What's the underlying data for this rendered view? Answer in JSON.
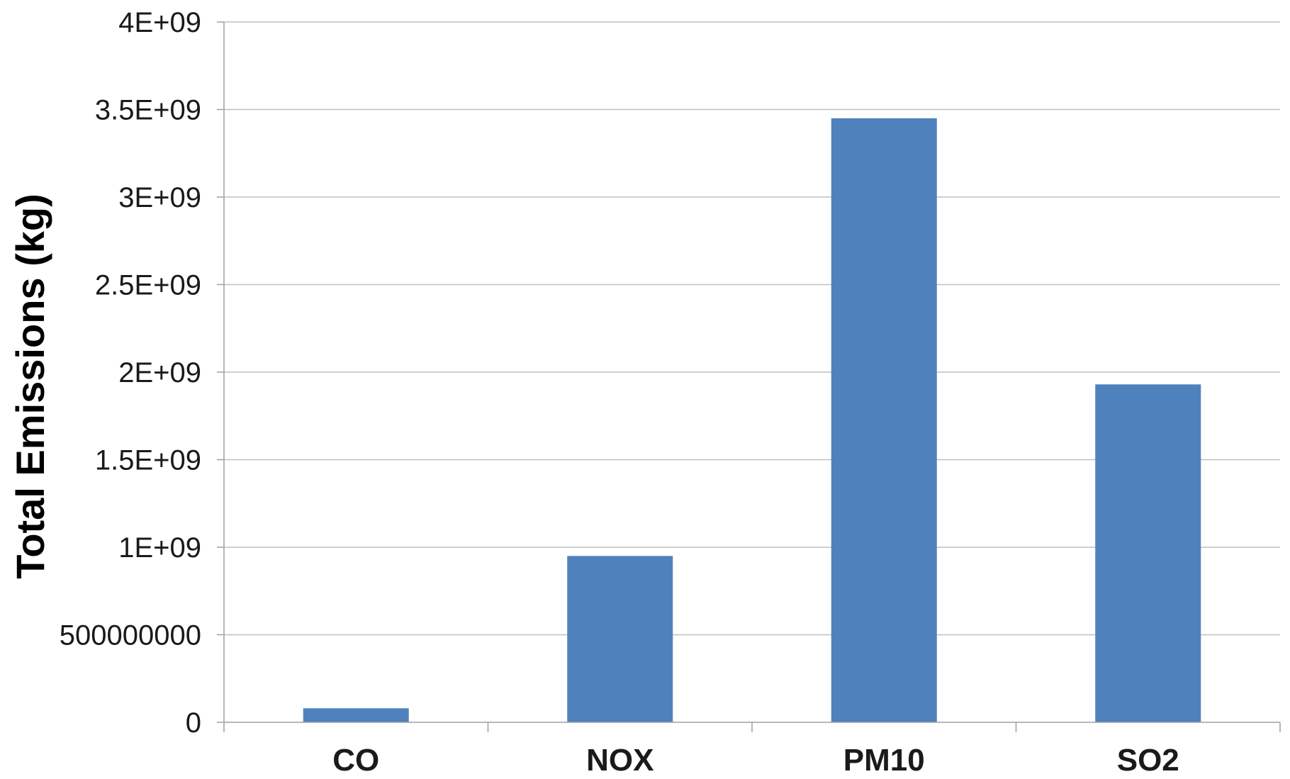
{
  "chart_data": {
    "type": "bar",
    "title": "",
    "xlabel": "",
    "ylabel": "Total Emissions (kg)",
    "categories": [
      "CO",
      "NOX",
      "PM10",
      "SO2"
    ],
    "values": [
      80000000,
      950000000,
      3450000000,
      1930000000
    ],
    "ylim": [
      0,
      4000000000
    ],
    "y_ticks": [
      0,
      500000000,
      1000000000,
      1500000000,
      2000000000,
      2500000000,
      3000000000,
      3500000000,
      4000000000
    ],
    "y_tick_labels": [
      "0",
      "500000000",
      "1E+09",
      "1.5E+09",
      "2E+09",
      "2.5E+09",
      "3E+09",
      "3.5E+09",
      "4E+09"
    ],
    "grid": true,
    "legend": "none",
    "bar_color": "#4f81bd",
    "grid_color": "#bfbfbf",
    "axis_color": "#9f9f9f"
  }
}
